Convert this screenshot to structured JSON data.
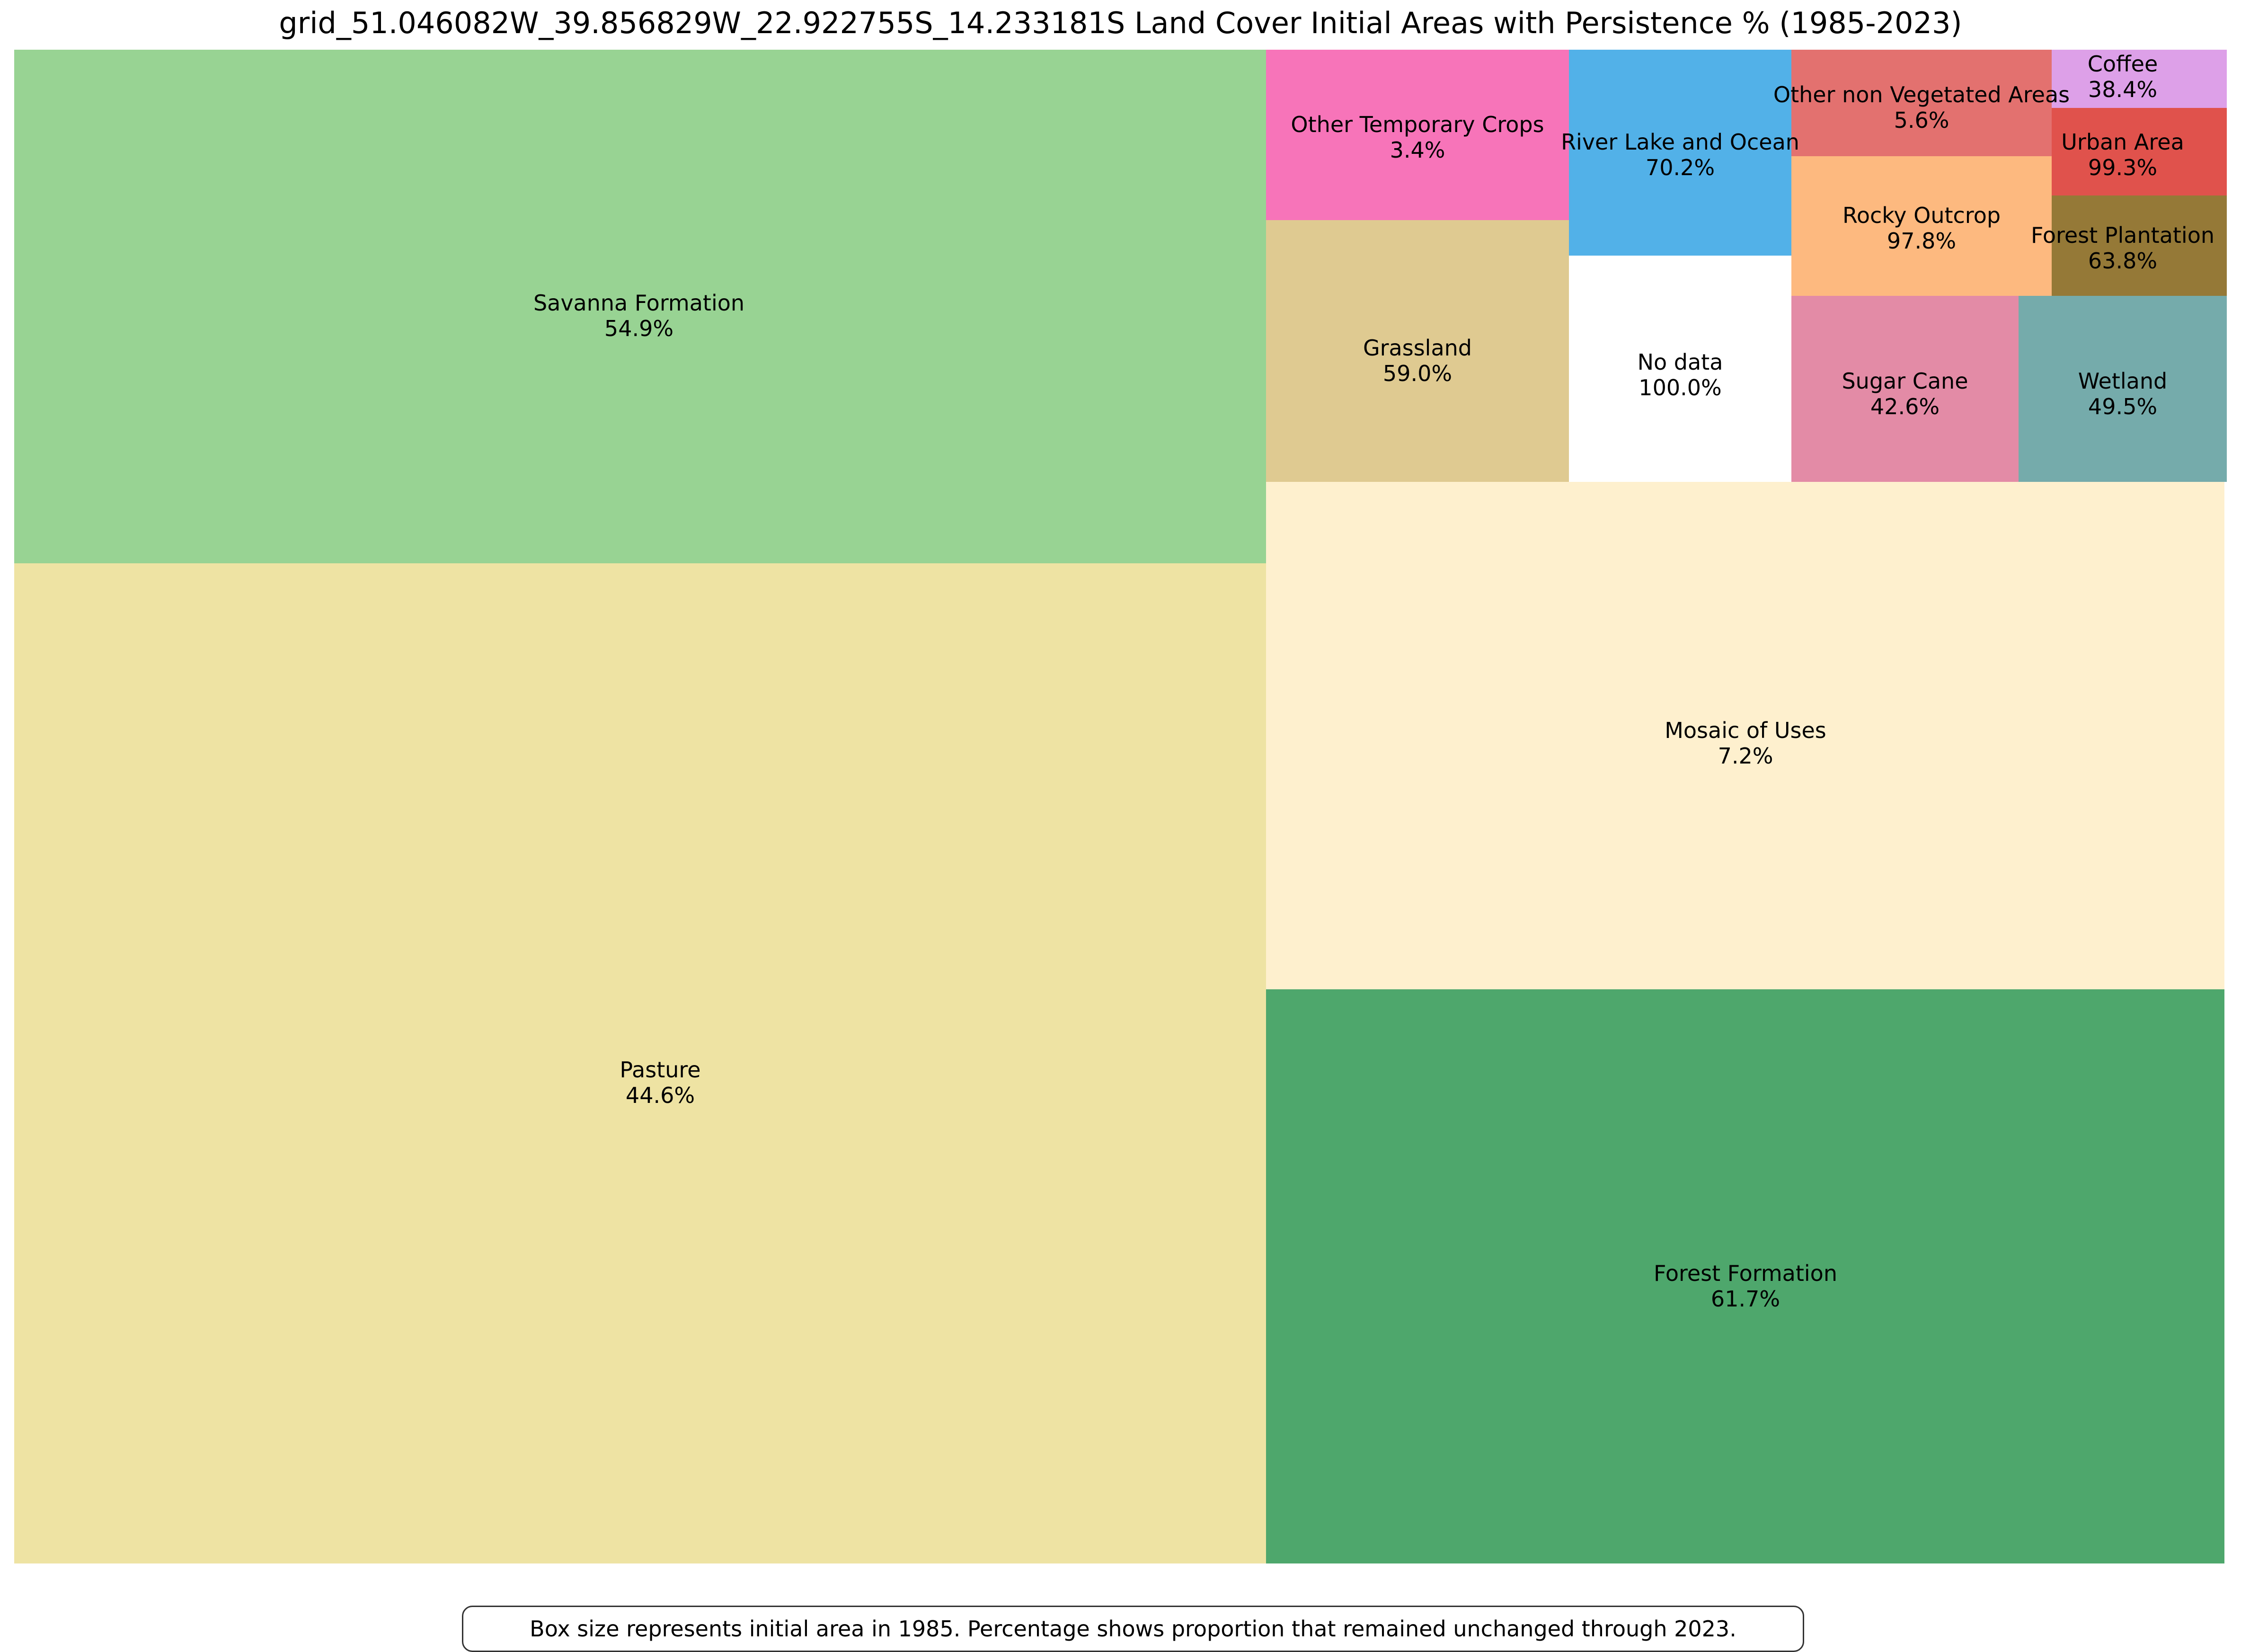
{
  "chart_data": {
    "type": "treemap",
    "title": "grid_51.046082W_39.856829W_22.922755S_14.233181S Land Cover Initial Areas with Persistence % (1985-2023)",
    "footnote": "Box size represents initial area in 1985. Percentage shows proportion that remained unchanged through 2023.",
    "items": [
      {
        "name": "Pasture",
        "persistence": "44.6%",
        "color": "#eee3a3"
      },
      {
        "name": "Savanna Formation",
        "persistence": "54.9%",
        "color": "#98d393"
      },
      {
        "name": "Forest Formation",
        "persistence": "61.7%",
        "color": "#4ea76c"
      },
      {
        "name": "Mosaic of Uses",
        "persistence": "7.2%",
        "color": "#fef0ce"
      },
      {
        "name": "Grassland",
        "persistence": "59.0%",
        "color": "#dfca91"
      },
      {
        "name": "Other Temporary Crops",
        "persistence": "3.4%",
        "color": "#f774b9"
      },
      {
        "name": "No data",
        "persistence": "100.0%",
        "color": "#ffffff"
      },
      {
        "name": "River Lake and Ocean",
        "persistence": "70.2%",
        "color": "#52b1e8"
      },
      {
        "name": "Sugar Cane",
        "persistence": "42.6%",
        "color": "#e38ba6"
      },
      {
        "name": "Rocky Outcrop",
        "persistence": "97.8%",
        "color": "#fdb97f"
      },
      {
        "name": "Other non Vegetated Areas",
        "persistence": "5.6%",
        "color": "#e3716f"
      },
      {
        "name": "Wetland",
        "persistence": "49.5%",
        "color": "#75abab"
      },
      {
        "name": "Forest Plantation",
        "persistence": "63.8%",
        "color": "#957937"
      },
      {
        "name": "Urban Area",
        "persistence": "99.3%",
        "color": "#e0524c"
      },
      {
        "name": "Coffee",
        "persistence": "38.4%",
        "color": "#dda0e8"
      }
    ]
  }
}
